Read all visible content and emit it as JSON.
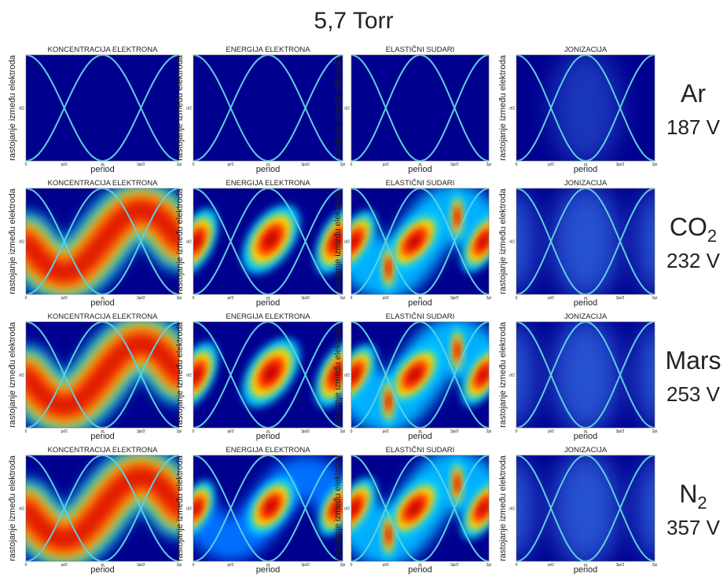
{
  "title": "5,7 Torr",
  "x_label": "period",
  "x_ticks": [
    "0",
    "pi/2",
    "pi",
    "3pi/2",
    "2pi"
  ],
  "y_tick": "d/2",
  "rows": [
    {
      "label": "Ar",
      "voltage": "187 V",
      "panels": [
        {
          "title": "KONCENTRACIJA ELEKTRONA",
          "ylabel": "rastojanje između elektroda"
        },
        {
          "title": "ENERGIJA ELEKTRONA",
          "ylabel": "rastojanje između elektroda"
        },
        {
          "title": "ELASTIČNI SUDARI",
          "ylabel": "ratojanje između elektroda"
        },
        {
          "title": "JONIZACIJA",
          "ylabel": "rastojanje između elektroda"
        }
      ]
    },
    {
      "label": "CO",
      "label_sub": "2",
      "voltage": "232 V",
      "panels": [
        {
          "title": "KONCENTRACIJA ELEKTRONA",
          "ylabel": "rastojanje između elektroda"
        },
        {
          "title": "ENERGIJA ELEKTRONA",
          "ylabel": "rastojanje između elektroda"
        },
        {
          "title": "ELASTIČNI SUDARI",
          "ylabel": "ratojanje između elektroda"
        },
        {
          "title": "JONIZACIJA",
          "ylabel": "rastojanje između elektroda"
        }
      ]
    },
    {
      "label": "Mars",
      "voltage": "253 V",
      "panels": [
        {
          "title": "KONCENTRACIJA ELEKTRONA",
          "ylabel": "rastojanje između elektroda"
        },
        {
          "title": "ENERGIJA ELEKTRONA",
          "ylabel": "rastojanje između elektroda"
        },
        {
          "title": "ELASTIČNI SUDARI",
          "ylabel": "ratojanje između elektroda"
        },
        {
          "title": "JONIZACIJA",
          "ylabel": "rastojanje između elektroda"
        }
      ]
    },
    {
      "label": "N",
      "label_sub": "2",
      "voltage": "357 V",
      "panels": [
        {
          "title": "KONCENTRACIJA ELEKTRONA",
          "ylabel": "rastojanje između elektroda"
        },
        {
          "title": "ENERGIJA ELEKTRONA",
          "ylabel": "rastojanje između elektroda"
        },
        {
          "title": "ELASTIČNI SUDARI",
          "ylabel": "rastojanje između elektroda"
        },
        {
          "title": "JONIZACIJA",
          "ylabel": "rastojanje između elektroda"
        }
      ]
    }
  ]
}
